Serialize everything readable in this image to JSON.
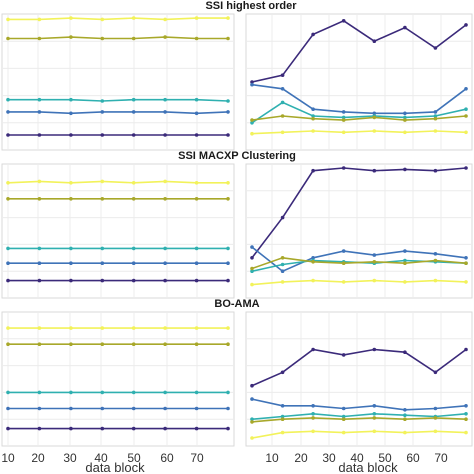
{
  "figure": {
    "row_titles": [
      "SSI highest order",
      "SSI MACXP Clustering",
      "BO-AMA"
    ],
    "xlabel": "data block",
    "x_ticks_left": [
      "10",
      "20",
      "30",
      "40",
      "50",
      "60",
      "70"
    ],
    "x_ticks_right": [
      "10",
      "20",
      "30",
      "40",
      "50",
      "60",
      "70"
    ]
  },
  "chart_data": [
    {
      "panel": "row1-left",
      "type": "line",
      "xlim": [
        8,
        80
      ],
      "ylim": [
        0,
        1
      ],
      "grid": true,
      "series": [
        {
          "color": "#f2f25a",
          "values": [
            0.96,
            0.96,
            0.97,
            0.96,
            0.97,
            0.96,
            0.97,
            0.97
          ]
        },
        {
          "color": "#a8a82a",
          "values": [
            0.82,
            0.82,
            0.83,
            0.82,
            0.82,
            0.83,
            0.82,
            0.82
          ]
        },
        {
          "color": "#2fb0b0",
          "values": [
            0.37,
            0.37,
            0.37,
            0.36,
            0.37,
            0.37,
            0.37,
            0.36
          ]
        },
        {
          "color": "#3f73b8",
          "values": [
            0.28,
            0.28,
            0.27,
            0.28,
            0.28,
            0.28,
            0.27,
            0.28
          ]
        },
        {
          "color": "#3b2a7a",
          "values": [
            0.11,
            0.11,
            0.11,
            0.11,
            0.11,
            0.11,
            0.11,
            0.11
          ]
        }
      ]
    },
    {
      "panel": "row1-right",
      "type": "line",
      "xlim": [
        2,
        76
      ],
      "ylim": [
        0,
        1
      ],
      "grid": true,
      "series": [
        {
          "color": "#3b2a7a",
          "values": [
            0.5,
            0.55,
            0.85,
            0.95,
            0.8,
            0.9,
            0.75,
            0.92
          ]
        },
        {
          "color": "#3f73b8",
          "values": [
            0.48,
            0.45,
            0.3,
            0.28,
            0.27,
            0.27,
            0.28,
            0.45
          ]
        },
        {
          "color": "#2fb0b0",
          "values": [
            0.2,
            0.35,
            0.25,
            0.24,
            0.25,
            0.24,
            0.25,
            0.3
          ]
        },
        {
          "color": "#a8a82a",
          "values": [
            0.22,
            0.25,
            0.23,
            0.22,
            0.24,
            0.22,
            0.23,
            0.25
          ]
        },
        {
          "color": "#f2f25a",
          "values": [
            0.12,
            0.13,
            0.14,
            0.13,
            0.14,
            0.13,
            0.14,
            0.13
          ]
        }
      ]
    },
    {
      "panel": "row2-left",
      "type": "line",
      "xlim": [
        8,
        80
      ],
      "ylim": [
        0,
        1
      ],
      "grid": true,
      "series": [
        {
          "color": "#f2f25a",
          "values": [
            0.86,
            0.87,
            0.86,
            0.87,
            0.86,
            0.87,
            0.86,
            0.86
          ]
        },
        {
          "color": "#a8a82a",
          "values": [
            0.74,
            0.74,
            0.74,
            0.74,
            0.74,
            0.74,
            0.74,
            0.74
          ]
        },
        {
          "color": "#2fb0b0",
          "values": [
            0.37,
            0.37,
            0.37,
            0.37,
            0.37,
            0.37,
            0.37,
            0.37
          ]
        },
        {
          "color": "#3f73b8",
          "values": [
            0.26,
            0.26,
            0.26,
            0.26,
            0.26,
            0.26,
            0.26,
            0.26
          ]
        },
        {
          "color": "#3b2a7a",
          "values": [
            0.13,
            0.13,
            0.13,
            0.13,
            0.13,
            0.13,
            0.13,
            0.13
          ]
        }
      ]
    },
    {
      "panel": "row2-right",
      "type": "line",
      "xlim": [
        2,
        76
      ],
      "ylim": [
        0,
        1
      ],
      "grid": true,
      "series": [
        {
          "color": "#3b2a7a",
          "values": [
            0.3,
            0.6,
            0.95,
            0.97,
            0.95,
            0.96,
            0.95,
            0.97
          ]
        },
        {
          "color": "#3f73b8",
          "values": [
            0.38,
            0.2,
            0.3,
            0.35,
            0.32,
            0.35,
            0.33,
            0.3
          ]
        },
        {
          "color": "#2fb0b0",
          "values": [
            0.2,
            0.25,
            0.28,
            0.27,
            0.26,
            0.28,
            0.27,
            0.26
          ]
        },
        {
          "color": "#a8a82a",
          "values": [
            0.22,
            0.3,
            0.27,
            0.26,
            0.27,
            0.26,
            0.28,
            0.26
          ]
        },
        {
          "color": "#f2f25a",
          "values": [
            0.1,
            0.12,
            0.13,
            0.12,
            0.13,
            0.12,
            0.13,
            0.12
          ]
        }
      ]
    },
    {
      "panel": "row3-left",
      "type": "line",
      "xlim": [
        8,
        80
      ],
      "ylim": [
        0,
        1
      ],
      "grid": true,
      "series": [
        {
          "color": "#f2f25a",
          "values": [
            0.88,
            0.88,
            0.88,
            0.88,
            0.88,
            0.88,
            0.88,
            0.88
          ]
        },
        {
          "color": "#a8a82a",
          "values": [
            0.76,
            0.76,
            0.76,
            0.76,
            0.76,
            0.76,
            0.76,
            0.76
          ]
        },
        {
          "color": "#2fb0b0",
          "values": [
            0.4,
            0.4,
            0.4,
            0.4,
            0.4,
            0.4,
            0.4,
            0.4
          ]
        },
        {
          "color": "#3f73b8",
          "values": [
            0.28,
            0.28,
            0.28,
            0.28,
            0.28,
            0.28,
            0.28,
            0.28
          ]
        },
        {
          "color": "#3b2a7a",
          "values": [
            0.13,
            0.13,
            0.13,
            0.13,
            0.13,
            0.13,
            0.13,
            0.13
          ]
        }
      ]
    },
    {
      "panel": "row3-right",
      "type": "line",
      "xlim": [
        2,
        76
      ],
      "ylim": [
        0,
        1
      ],
      "grid": true,
      "series": [
        {
          "color": "#3b2a7a",
          "values": [
            0.45,
            0.55,
            0.72,
            0.68,
            0.72,
            0.7,
            0.55,
            0.72
          ]
        },
        {
          "color": "#3f73b8",
          "values": [
            0.35,
            0.3,
            0.3,
            0.28,
            0.3,
            0.27,
            0.28,
            0.3
          ]
        },
        {
          "color": "#2fb0b0",
          "values": [
            0.2,
            0.22,
            0.24,
            0.22,
            0.24,
            0.23,
            0.22,
            0.24
          ]
        },
        {
          "color": "#a8a82a",
          "values": [
            0.18,
            0.2,
            0.21,
            0.2,
            0.21,
            0.2,
            0.21,
            0.2
          ]
        },
        {
          "color": "#f2f25a",
          "values": [
            0.06,
            0.1,
            0.11,
            0.1,
            0.11,
            0.1,
            0.11,
            0.1
          ]
        }
      ]
    }
  ]
}
